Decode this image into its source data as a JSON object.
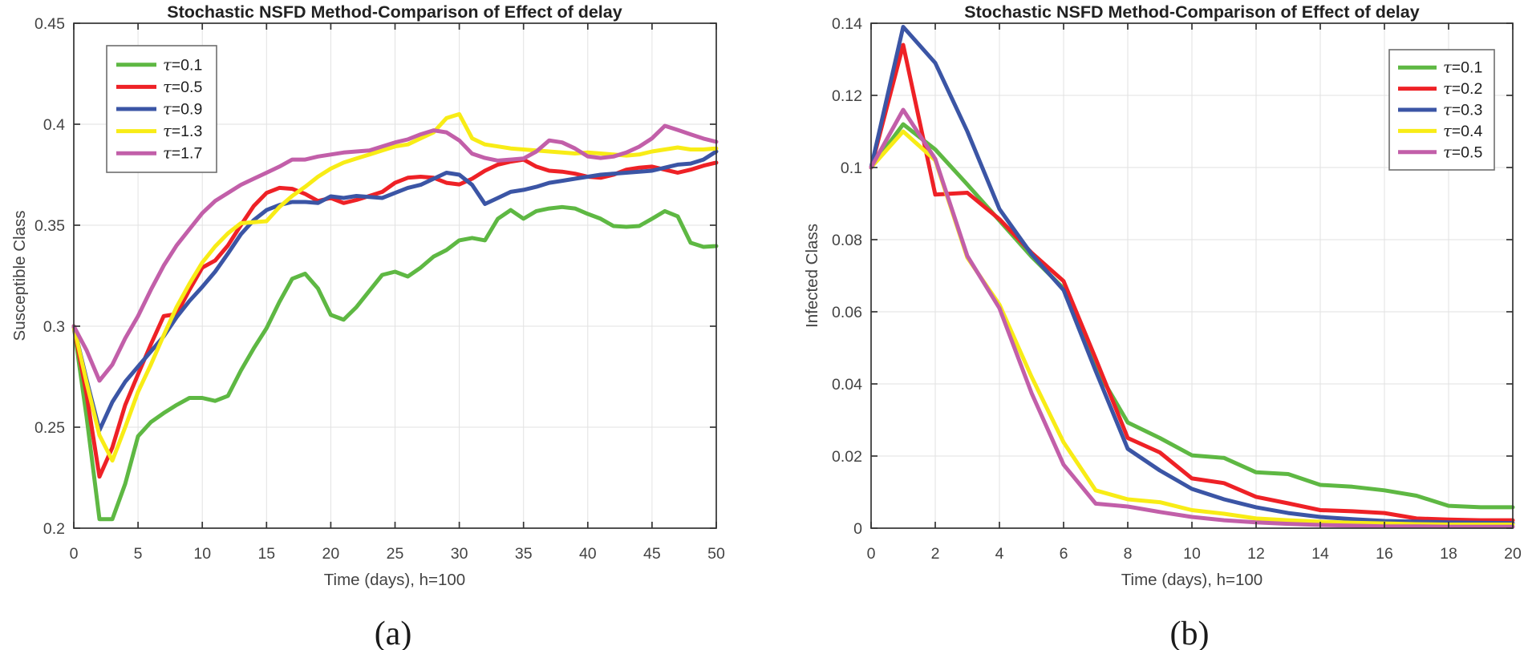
{
  "chart_data": [
    {
      "type": "line",
      "panel_label": "(a)",
      "title": "Stochastic NSFD Method-Comparison of Effect of delay",
      "xlabel": "Time (days), h=100",
      "ylabel": "Susceptible Class",
      "xlim": [
        0,
        50
      ],
      "ylim": [
        0.2,
        0.45
      ],
      "xticks": [
        0,
        5,
        10,
        15,
        20,
        25,
        30,
        35,
        40,
        45,
        50
      ],
      "xtick_labels": [
        "0",
        "5",
        "10",
        "15",
        "20",
        "25",
        "30",
        "35",
        "40",
        "45",
        "50"
      ],
      "yticks": [
        0.2,
        0.25,
        0.3,
        0.35,
        0.4,
        0.45
      ],
      "ytick_labels": [
        "0.2",
        "0.25",
        "0.3",
        "0.35",
        "0.4",
        "0.45"
      ],
      "grid": true,
      "legend_position": "top-left",
      "x": [
        0,
        1,
        2,
        3,
        4,
        5,
        6,
        7,
        8,
        9,
        10,
        11,
        12,
        13,
        14,
        15,
        16,
        17,
        18,
        19,
        20,
        21,
        22,
        23,
        24,
        25,
        26,
        27,
        28,
        29,
        30,
        31,
        32,
        33,
        34,
        35,
        36,
        37,
        38,
        39,
        40,
        41,
        42,
        43,
        44,
        45,
        46,
        47,
        48,
        49,
        50
      ],
      "series": [
        {
          "name": "τ=0.1",
          "color": "#5eb843",
          "values": [
            0.3,
            0.255,
            0.2045,
            0.2045,
            0.222,
            0.2455,
            0.2525,
            0.257,
            0.261,
            0.2645,
            0.2645,
            0.263,
            0.2655,
            0.278,
            0.289,
            0.299,
            0.312,
            0.3235,
            0.326,
            0.3187,
            0.3056,
            0.3032,
            0.3095,
            0.3175,
            0.3254,
            0.327,
            0.3246,
            0.329,
            0.3345,
            0.3377,
            0.3425,
            0.3437,
            0.3425,
            0.3532,
            0.3575,
            0.3532,
            0.357,
            0.3583,
            0.359,
            0.3583,
            0.3556,
            0.3532,
            0.3496,
            0.3492,
            0.3496,
            0.3532,
            0.357,
            0.3544,
            0.3413,
            0.3393,
            0.3397
          ]
        },
        {
          "name": "τ=0.5",
          "color": "#ee2126",
          "values": [
            0.3,
            0.266,
            0.2255,
            0.24,
            0.261,
            0.2762,
            0.291,
            0.305,
            0.306,
            0.318,
            0.329,
            0.3325,
            0.34,
            0.35,
            0.3595,
            0.366,
            0.3685,
            0.368,
            0.3655,
            0.362,
            0.3635,
            0.361,
            0.3625,
            0.3645,
            0.3665,
            0.371,
            0.3735,
            0.374,
            0.3735,
            0.371,
            0.3702,
            0.373,
            0.377,
            0.38,
            0.3815,
            0.3825,
            0.379,
            0.377,
            0.3765,
            0.3755,
            0.374,
            0.3735,
            0.375,
            0.3775,
            0.3785,
            0.379,
            0.3775,
            0.376,
            0.3775,
            0.3795,
            0.381
          ]
        },
        {
          "name": "τ=0.9",
          "color": "#3b55a5",
          "values": [
            0.3,
            0.2735,
            0.2485,
            0.2625,
            0.2725,
            0.28,
            0.2875,
            0.295,
            0.3045,
            0.3125,
            0.3195,
            0.327,
            0.336,
            0.3455,
            0.3525,
            0.3575,
            0.36,
            0.3615,
            0.3615,
            0.361,
            0.3643,
            0.3635,
            0.3645,
            0.364,
            0.3635,
            0.366,
            0.3685,
            0.37,
            0.373,
            0.376,
            0.375,
            0.37,
            0.3605,
            0.3635,
            0.3665,
            0.3675,
            0.369,
            0.371,
            0.372,
            0.373,
            0.374,
            0.375,
            0.3755,
            0.376,
            0.3765,
            0.377,
            0.3785,
            0.38,
            0.3805,
            0.3825,
            0.3865
          ]
        },
        {
          "name": "τ=1.3",
          "color": "#f8ec16",
          "values": [
            0.3,
            0.272,
            0.246,
            0.2335,
            0.25,
            0.2675,
            0.281,
            0.2955,
            0.3095,
            0.321,
            0.3315,
            0.3395,
            0.346,
            0.351,
            0.3515,
            0.352,
            0.359,
            0.3645,
            0.369,
            0.374,
            0.378,
            0.381,
            0.383,
            0.385,
            0.387,
            0.389,
            0.39,
            0.393,
            0.396,
            0.403,
            0.405,
            0.393,
            0.39,
            0.389,
            0.388,
            0.3875,
            0.387,
            0.3865,
            0.386,
            0.3855,
            0.386,
            0.3855,
            0.385,
            0.3845,
            0.385,
            0.3865,
            0.3875,
            0.3885,
            0.3875,
            0.3875,
            0.388
          ]
        },
        {
          "name": "τ=1.7",
          "color": "#c25fa9",
          "values": [
            0.3,
            0.288,
            0.273,
            0.281,
            0.294,
            0.305,
            0.318,
            0.33,
            0.34,
            0.348,
            0.356,
            0.362,
            0.366,
            0.37,
            0.373,
            0.376,
            0.379,
            0.3825,
            0.3825,
            0.384,
            0.385,
            0.386,
            0.3865,
            0.387,
            0.389,
            0.391,
            0.3925,
            0.395,
            0.397,
            0.396,
            0.392,
            0.3854,
            0.3833,
            0.382,
            0.3825,
            0.383,
            0.3865,
            0.392,
            0.391,
            0.388,
            0.3841,
            0.3833,
            0.384,
            0.386,
            0.3889,
            0.393,
            0.3992,
            0.3972,
            0.395,
            0.3929,
            0.3913
          ]
        }
      ]
    },
    {
      "type": "line",
      "panel_label": "(b)",
      "title": "Stochastic NSFD Method-Comparison of Effect of delay",
      "xlabel": "Time (days), h=100",
      "ylabel": "Infected Class",
      "xlim": [
        0,
        20
      ],
      "ylim": [
        0,
        0.14
      ],
      "xticks": [
        0,
        2,
        4,
        6,
        8,
        10,
        12,
        14,
        16,
        18,
        20
      ],
      "xtick_labels": [
        "0",
        "2",
        "4",
        "6",
        "8",
        "10",
        "12",
        "14",
        "16",
        "18",
        "20"
      ],
      "yticks": [
        0,
        0.02,
        0.04,
        0.06,
        0.08,
        0.1,
        0.12,
        0.14
      ],
      "ytick_labels": [
        "0",
        "0.02",
        "0.04",
        "0.06",
        "0.08",
        "0.1",
        "0.12",
        "0.14"
      ],
      "grid": true,
      "legend_position": "top-right",
      "x": [
        0,
        1,
        2,
        3,
        4,
        5,
        6,
        7,
        8,
        9,
        10,
        11,
        12,
        13,
        14,
        15,
        16,
        17,
        18,
        19,
        20
      ],
      "series": [
        {
          "name": "τ=0.1",
          "color": "#5eb843",
          "values": [
            0.1,
            0.112,
            0.105,
            0.0953,
            0.0853,
            0.0753,
            0.0665,
            0.0445,
            0.0293,
            0.025,
            0.0202,
            0.0195,
            0.0155,
            0.015,
            0.012,
            0.0115,
            0.0105,
            0.009,
            0.0062,
            0.0058,
            0.0058
          ]
        },
        {
          "name": "τ=0.2",
          "color": "#ee2126",
          "values": [
            0.1,
            0.134,
            0.0925,
            0.093,
            0.0857,
            0.0764,
            0.0685,
            0.047,
            0.025,
            0.021,
            0.0138,
            0.0125,
            0.0087,
            0.0069,
            0.005,
            0.0047,
            0.0042,
            0.0027,
            0.0024,
            0.0022,
            0.0022
          ]
        },
        {
          "name": "τ=0.3",
          "color": "#3b55a5",
          "values": [
            0.1,
            0.139,
            0.129,
            0.11,
            0.0885,
            0.076,
            0.066,
            0.0436,
            0.022,
            0.016,
            0.0109,
            0.008,
            0.0058,
            0.0042,
            0.0031,
            0.0025,
            0.002,
            0.0018,
            0.0016,
            0.0015,
            0.0014
          ]
        },
        {
          "name": "τ=0.4",
          "color": "#f8ec16",
          "values": [
            0.1,
            0.11,
            0.102,
            0.075,
            0.062,
            0.042,
            0.0238,
            0.0105,
            0.008,
            0.0072,
            0.005,
            0.004,
            0.0027,
            0.0022,
            0.0018,
            0.0015,
            0.0013,
            0.0011,
            0.001,
            0.001,
            0.001
          ]
        },
        {
          "name": "τ=0.5",
          "color": "#c25fa9",
          "values": [
            0.1,
            0.116,
            0.1024,
            0.0755,
            0.061,
            0.0375,
            0.0176,
            0.0068,
            0.006,
            0.0045,
            0.0031,
            0.0022,
            0.0016,
            0.0012,
            0.0009,
            0.0007,
            0.0005,
            0.0005,
            0.0004,
            0.0004,
            0.0004
          ]
        }
      ]
    }
  ]
}
